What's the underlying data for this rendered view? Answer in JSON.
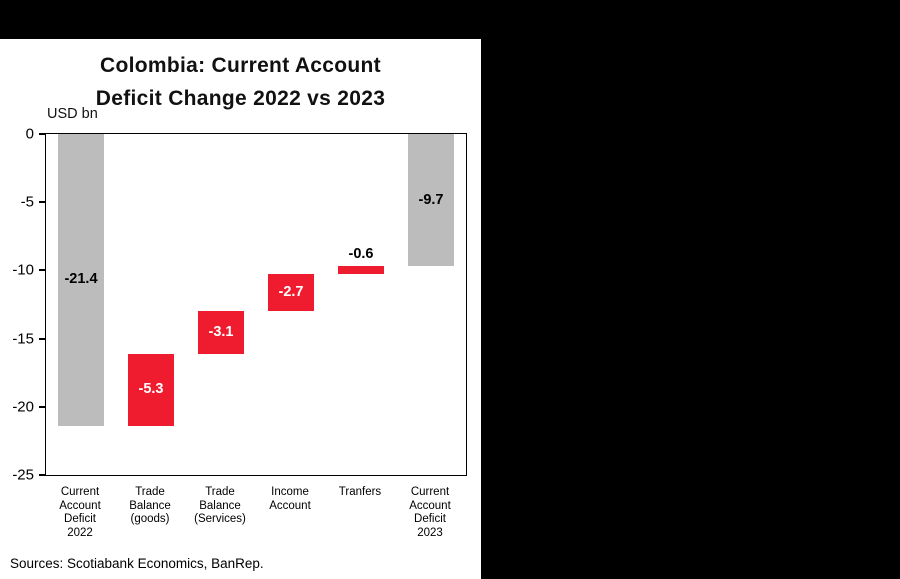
{
  "window": {
    "background": "#000000",
    "panel_background": "#ffffff"
  },
  "chart": {
    "title_line1": "Colombia: Current Account",
    "title_line2": "Deficit Change 2022 vs 2023",
    "unit_label": "USD bn",
    "sources": "Sources: Scotiabank Economics, BanRep."
  },
  "chart_data": {
    "type": "bar",
    "subtype": "waterfall",
    "title": "Colombia: Current Account Deficit Change 2022 vs 2023",
    "ylabel": "USD bn",
    "xlabel": "",
    "ylim": [
      -25,
      0
    ],
    "yticks": [
      0,
      -5,
      -10,
      -15,
      -20,
      -25
    ],
    "grid": false,
    "legend": null,
    "categories": [
      "Current Account Deficit 2022",
      "Trade Balance (goods)",
      "Trade Balance (Services)",
      "Income Account",
      "Tranfers",
      "Current Account Deficit 2023"
    ],
    "category_lines": [
      [
        "Current",
        "Account",
        "Deficit",
        "2022"
      ],
      [
        "Trade",
        "Balance",
        "(goods)"
      ],
      [
        "Trade",
        "Balance",
        "(Services)"
      ],
      [
        "Income",
        "Account"
      ],
      [
        "Tranfers"
      ],
      [
        "Current",
        "Account",
        "Deficit",
        "2023"
      ]
    ],
    "values": [
      -21.4,
      -5.3,
      -3.1,
      -2.7,
      -0.6,
      -9.7
    ],
    "bars": [
      {
        "id": "current-account-deficit-2022",
        "label": "-21.4",
        "value": -21.4,
        "start": 0,
        "end": -21.4,
        "color": "#bcbcbc",
        "label_color": "#000000",
        "label_pos": "center"
      },
      {
        "id": "trade-balance-goods",
        "label": "-5.3",
        "value": -5.3,
        "start": -16.1,
        "end": -21.4,
        "color": "#ee1c2e",
        "label_color": "#ffffff",
        "label_pos": "center"
      },
      {
        "id": "trade-balance-services",
        "label": "-3.1",
        "value": -3.1,
        "start": -13.0,
        "end": -16.1,
        "color": "#ee1c2e",
        "label_color": "#ffffff",
        "label_pos": "center"
      },
      {
        "id": "income-account",
        "label": "-2.7",
        "value": -2.7,
        "start": -10.3,
        "end": -13.0,
        "color": "#ee1c2e",
        "label_color": "#ffffff",
        "label_pos": "center"
      },
      {
        "id": "tranfers",
        "label": "-0.6",
        "value": -0.6,
        "start": -9.7,
        "end": -10.3,
        "color": "#ee1c2e",
        "label_color": "#000000",
        "label_pos": "above"
      },
      {
        "id": "current-account-deficit-2023",
        "label": "-9.7",
        "value": -9.7,
        "start": 0,
        "end": -9.7,
        "color": "#bcbcbc",
        "label_color": "#000000",
        "label_pos": "center"
      }
    ],
    "colors": {
      "total_bar": "#bcbcbc",
      "change_bar": "#ee1c2e"
    }
  }
}
